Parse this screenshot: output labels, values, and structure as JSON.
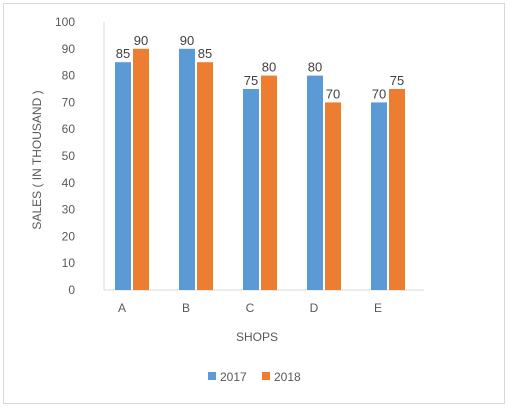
{
  "chart_data": {
    "type": "bar",
    "categories": [
      "A",
      "B",
      "C",
      "D",
      "E"
    ],
    "series": [
      {
        "name": "2017",
        "values": [
          85,
          90,
          75,
          80,
          70
        ],
        "color": "#5B9BD5"
      },
      {
        "name": "2018",
        "values": [
          90,
          85,
          80,
          70,
          75
        ],
        "color": "#ED7D31"
      }
    ],
    "title": "",
    "xlabel": "SHOPS",
    "ylabel": "SALES ( IN THOUSAND )",
    "ylim": [
      0,
      100
    ],
    "yticks": [
      0,
      10,
      20,
      30,
      40,
      50,
      60,
      70,
      80,
      90,
      100
    ],
    "grid": false,
    "legend_position": "bottom",
    "data_labels": true
  }
}
